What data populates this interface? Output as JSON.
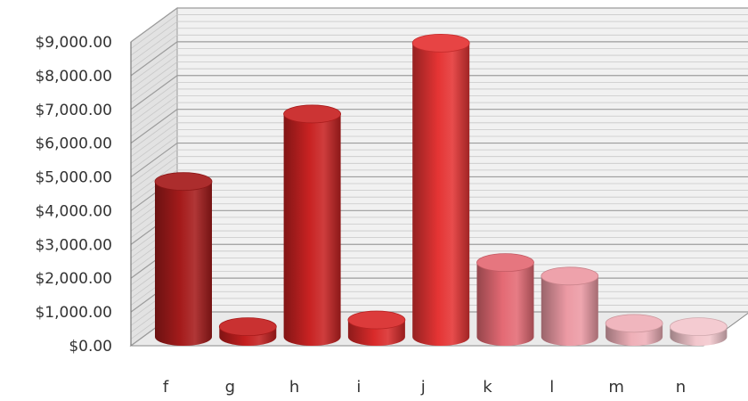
{
  "chart_data": {
    "type": "bar",
    "categories": [
      "f",
      "g",
      "h",
      "i",
      "j",
      "k",
      "l",
      "m",
      "n"
    ],
    "series": [
      {
        "values": [
          4600,
          300,
          6600,
          500,
          8700,
          2200,
          1800,
          400,
          300
        ],
        "colors": [
          "#a51b1b",
          "#c41f1f",
          "#c82222",
          "#d92a2a",
          "#e53434",
          "#e46a74",
          "#ec9aa4",
          "#efb0b8",
          "#f3c7cd"
        ]
      }
    ],
    "ylim": [
      0,
      9000
    ],
    "yticks": [
      "$0.00",
      "$1,000.00",
      "$2,000.00",
      "$3,000.00",
      "$4,000.00",
      "$5,000.00",
      "$6,000.00",
      "$7,000.00",
      "$8,000.00",
      "$9,000.00"
    ],
    "grid": true,
    "style": "3d-cylinder",
    "xlabel": "",
    "ylabel": "",
    "title": ""
  }
}
